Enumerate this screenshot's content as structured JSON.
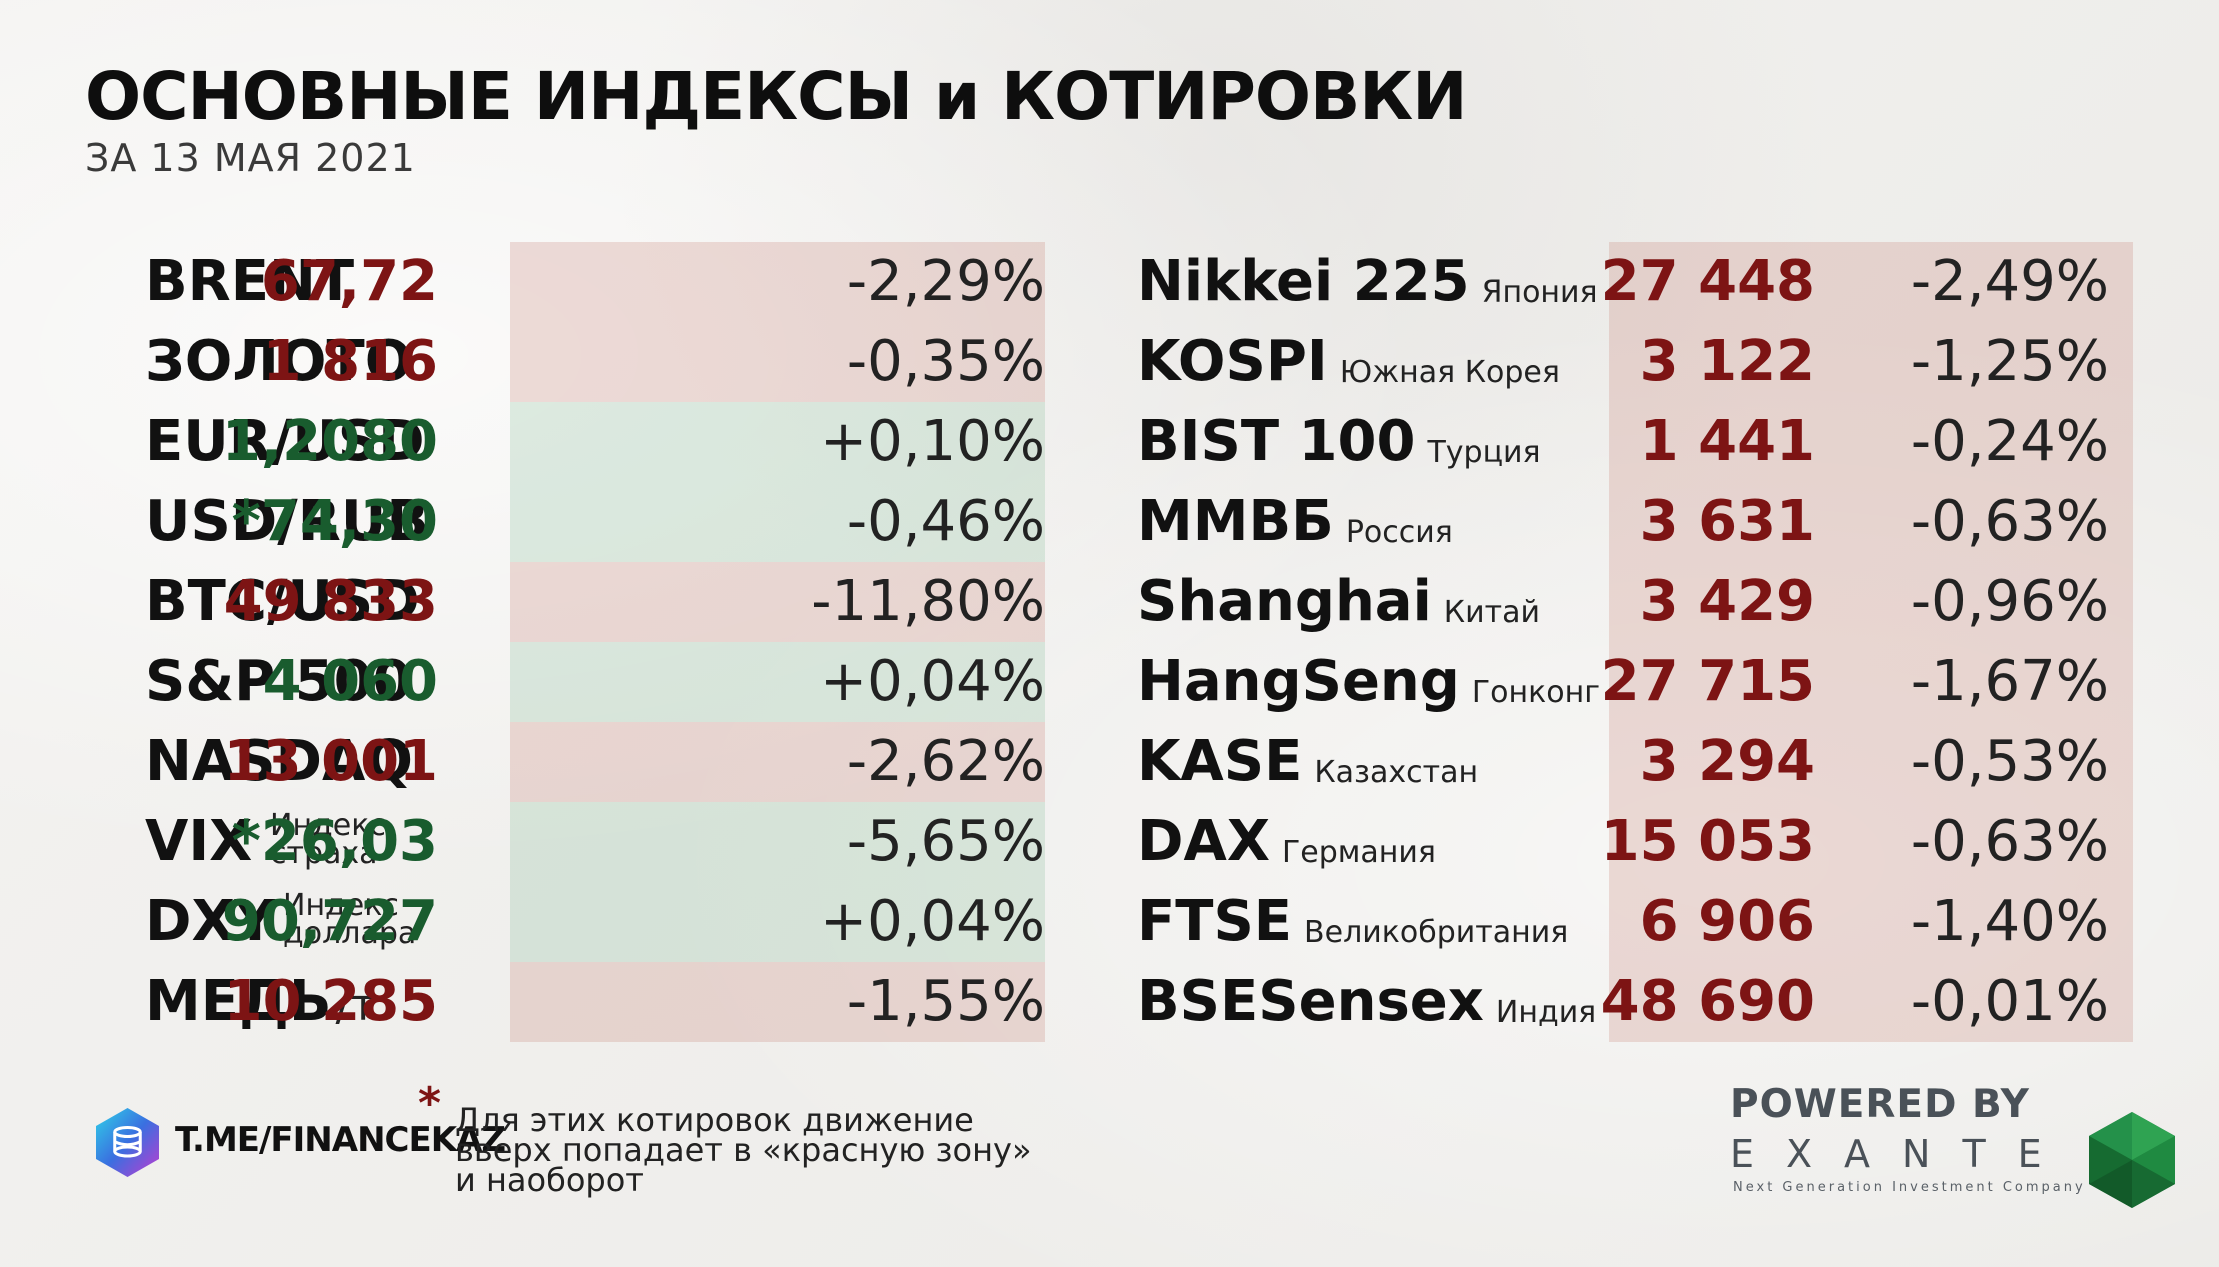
{
  "header": {
    "title": "ОСНОВНЫЕ ИНДЕКСЫ и КОТИРОВКИ",
    "subtitle": "ЗА 13 МАЯ 2021"
  },
  "left_table": [
    {
      "name": "BRENT",
      "value": "67,72",
      "change": "-2,29%",
      "zone": "red"
    },
    {
      "name": "ЗОЛОТО",
      "value": "1 816",
      "change": "-0,35%",
      "zone": "red"
    },
    {
      "name": "EUR/USD",
      "value": "1,2080",
      "change": "+0,10%",
      "zone": "green"
    },
    {
      "name": "USD/RUB",
      "value": "*74,30",
      "change": "-0,46%",
      "zone": "green"
    },
    {
      "name": "BTC/USD",
      "value": "49 833",
      "change": "-11,80%",
      "zone": "red"
    },
    {
      "name": "S&P 500",
      "value": "4 060",
      "change": "+0,04%",
      "zone": "green"
    },
    {
      "name": "NASDAQ",
      "value": "13 001",
      "change": "-2,62%",
      "zone": "red"
    },
    {
      "name": "VIX",
      "note_line1": "Индекс",
      "note_line2": "страха",
      "value": "*26,03",
      "change": "-5,65%",
      "zone": "green"
    },
    {
      "name": "DXY",
      "note_line1": "Индекс",
      "note_line2": "доллара",
      "value": "90,727",
      "change": "+0,04%",
      "zone": "green"
    },
    {
      "name": "МЕДЬ",
      "suffix": "/т",
      "value": "10 285",
      "change": "-1,55%",
      "zone": "red"
    }
  ],
  "right_table": [
    {
      "name": "Nikkei 225",
      "country": "Япония",
      "value": "27 448",
      "change": "-2,49%"
    },
    {
      "name": "KOSPI",
      "country": "Южная Корея",
      "value": "3 122",
      "change": "-1,25%"
    },
    {
      "name": "BIST 100",
      "country": "Турция",
      "value": "1 441",
      "change": "-0,24%"
    },
    {
      "name": "ММВБ",
      "country": "Россия",
      "value": "3 631",
      "change": "-0,63%"
    },
    {
      "name": "Shanghai",
      "country": "Китай",
      "value": "3 429",
      "change": "-0,96%"
    },
    {
      "name": "HangSeng",
      "country": "Гонконг",
      "value": "27 715",
      "change": "-1,67%"
    },
    {
      "name": "KASE",
      "country": "Казахстан",
      "value": "3 294",
      "change": "-0,53%"
    },
    {
      "name": "DAX",
      "country": "Германия",
      "value": "15 053",
      "change": "-0,63%"
    },
    {
      "name": "FTSE",
      "country": "Великобритания",
      "value": "6 906",
      "change": "-1,40%"
    },
    {
      "name": "BSESensex",
      "country": "Индия",
      "value": "48 690",
      "change": "-0,01%"
    }
  ],
  "footer": {
    "channel": "T.ME/FINANCEKAZ",
    "star": "*",
    "footnote_lines": [
      "Для этих котировок движение",
      "вверх попадает в «красную зону»",
      "и наоборот"
    ],
    "powered_by": "POWERED BY",
    "brand": "EXANTE",
    "tagline": "Next Generation Investment Company"
  },
  "colors": {
    "red_zone": "#c4786e",
    "green_zone": "#78b48c",
    "value_red": "#7d1414",
    "value_green": "#195c2e",
    "brand_gray": "#4a5158"
  }
}
